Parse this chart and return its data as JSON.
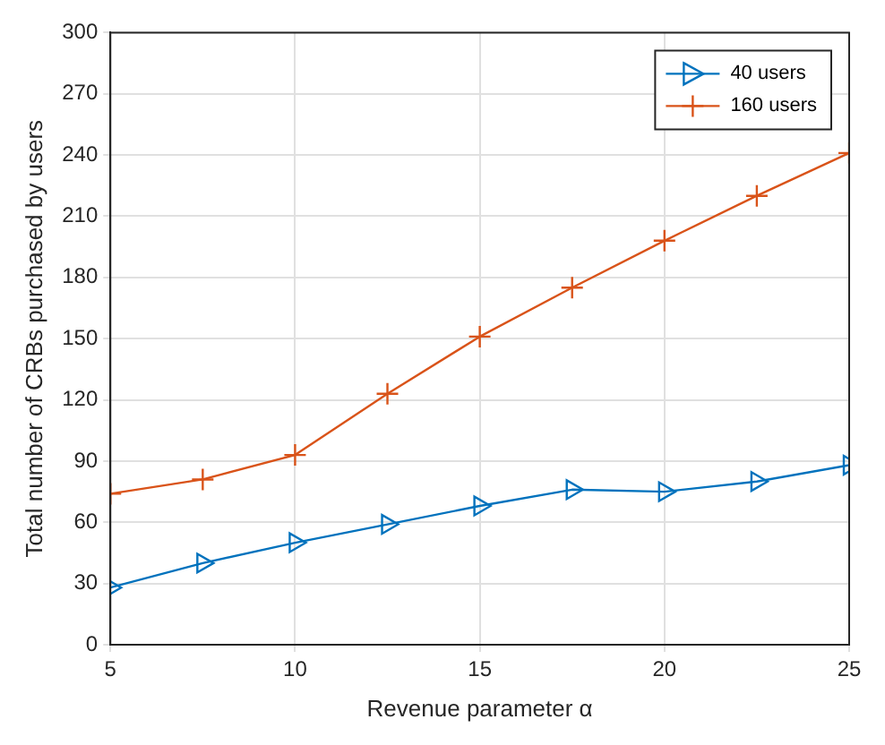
{
  "chart_data": {
    "type": "line",
    "xlabel": "Revenue parameter α",
    "ylabel": "Total number of CRBs purchased by users",
    "x": [
      5,
      7.5,
      10,
      12.5,
      15,
      17.5,
      20,
      22.5,
      25
    ],
    "series": [
      {
        "name": "40 users",
        "color": "#0072bd",
        "marker": "triangle",
        "values": [
          28,
          40,
          50,
          59,
          68,
          76,
          75,
          80,
          88
        ]
      },
      {
        "name": "160 users",
        "color": "#d95319",
        "marker": "cross",
        "values": [
          74,
          81,
          93,
          123,
          151,
          175,
          198,
          220,
          241
        ]
      }
    ],
    "xlim": [
      5,
      25
    ],
    "xticks": [
      5,
      10,
      15,
      20,
      25
    ],
    "ylim": [
      0,
      300
    ],
    "yticks": [
      0,
      30,
      60,
      90,
      120,
      150,
      180,
      210,
      240,
      270,
      300
    ],
    "grid": true,
    "legend": "top right",
    "line_style": "solid"
  }
}
